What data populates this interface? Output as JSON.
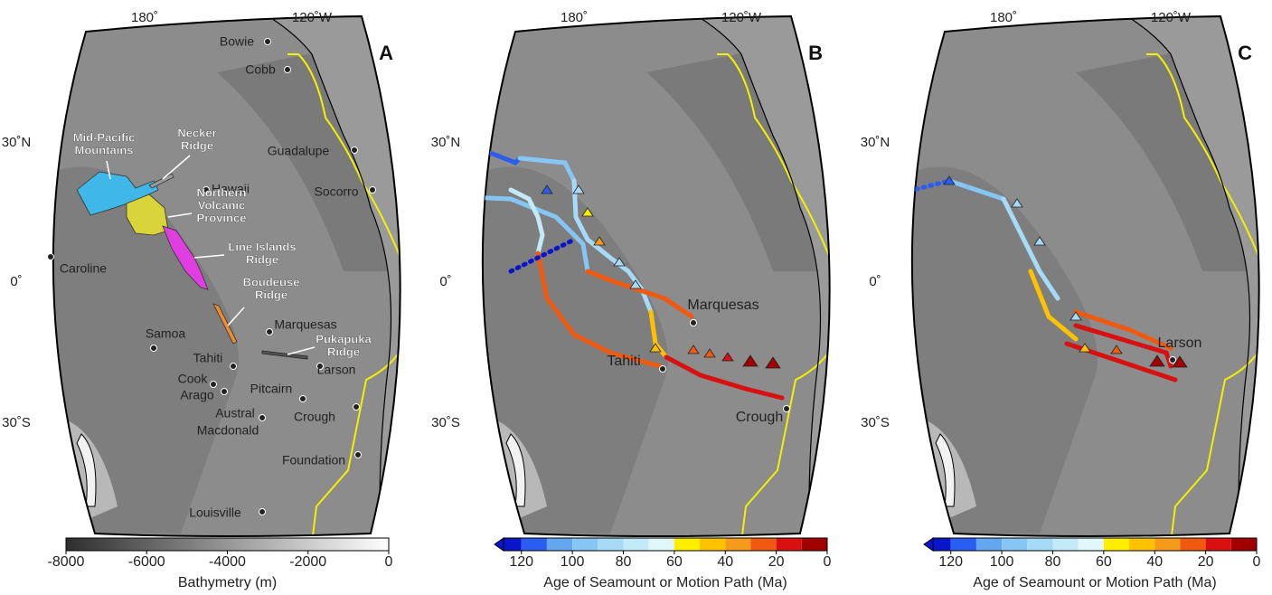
{
  "panels": [
    {
      "letter": "A",
      "lon_labels": [
        "180˚",
        "120˚W"
      ],
      "lat_labels": [
        "30˚N",
        "0˚",
        "30˚S"
      ],
      "place_labels": [
        "Bowie",
        "Cobb",
        "Guadalupe",
        "Hawaii",
        "Socorro",
        "Caroline",
        "Marquesas",
        "Samoa",
        "Tahiti",
        "Larson",
        "Cook",
        "Arago",
        "Pitcairn",
        "Austral",
        "Crough",
        "Macdonald",
        "Foundation",
        "Louisville"
      ],
      "feature_labels": [
        [
          "Mid-Pacific",
          "Mountains"
        ],
        [
          "Necker",
          "Ridge"
        ],
        [
          "Northern",
          "Volcanic",
          "Province"
        ],
        [
          "Line Islands",
          "Ridge"
        ],
        [
          "Boudeuse",
          "Ridge"
        ],
        [
          "Pukapuka",
          "Ridge"
        ]
      ]
    },
    {
      "letter": "B",
      "lon_labels": [
        "180˚",
        "120˚W"
      ],
      "lat_labels": [
        "30˚N",
        "0˚",
        "30˚S"
      ],
      "place_labels": [
        "Marquesas",
        "Tahiti",
        "Crough"
      ]
    },
    {
      "letter": "C",
      "lon_labels": [
        "180˚",
        "120˚W"
      ],
      "lat_labels": [
        "30˚N",
        "0˚",
        "30˚S"
      ],
      "place_labels": [
        "Larson"
      ]
    }
  ],
  "colorbars": [
    {
      "label": "Bathymetry (m)",
      "lim": [
        -8000,
        0
      ],
      "ticks": [
        -8000,
        -6000,
        -4000,
        -2000,
        0
      ]
    },
    {
      "label": "Age of Seamount or Motion Path (Ma)",
      "lim": [
        127,
        0
      ],
      "ticks": [
        120,
        100,
        80,
        60,
        40,
        20,
        0
      ],
      "edges": [
        120,
        110,
        100,
        90,
        80,
        70,
        60,
        50,
        40,
        30,
        20,
        10
      ],
      "colors": [
        "#0a14c8",
        "#2a5ef0",
        "#64a6f0",
        "#86c6f4",
        "#a6daf7",
        "#c2eaf9",
        "#e0f8fc",
        "#ffee00",
        "#ffc200",
        "#f59a1a",
        "#f05a10",
        "#d81010",
        "#a00000"
      ]
    },
    {
      "label": "Age of Seamount or Motion Path (Ma)",
      "lim": [
        127,
        0
      ],
      "ticks": [
        120,
        100,
        80,
        60,
        40,
        20,
        0
      ],
      "edges": [
        120,
        110,
        100,
        90,
        80,
        70,
        60,
        50,
        40,
        30,
        20,
        10
      ],
      "colors": [
        "#0a14c8",
        "#2a5ef0",
        "#64a6f0",
        "#86c6f4",
        "#a6daf7",
        "#c2eaf9",
        "#e0f8fc",
        "#ffee00",
        "#ffc200",
        "#f59a1a",
        "#f05a10",
        "#d81010",
        "#a00000"
      ]
    }
  ]
}
